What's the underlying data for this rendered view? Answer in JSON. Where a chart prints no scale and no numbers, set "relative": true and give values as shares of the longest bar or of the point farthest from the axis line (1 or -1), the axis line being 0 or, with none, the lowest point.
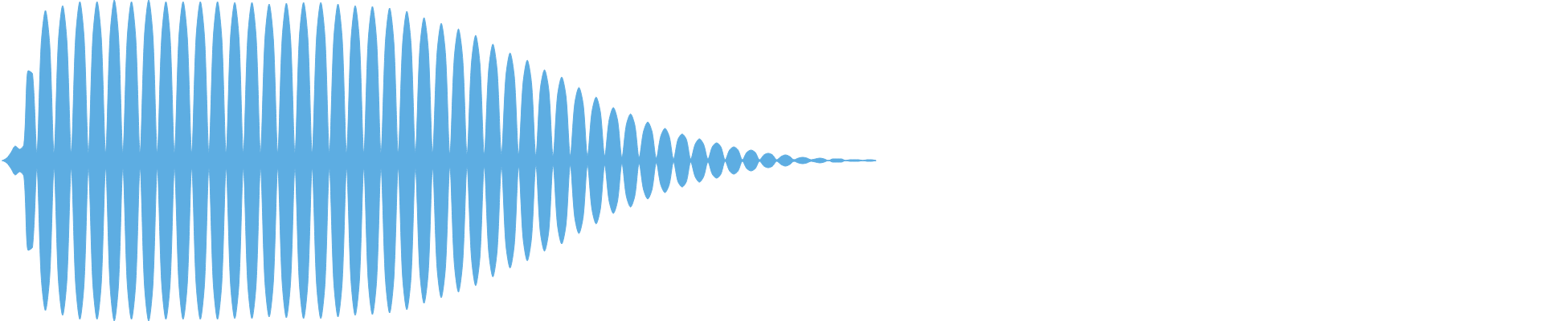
{
  "chart_data": {
    "type": "area",
    "relative": true,
    "tick_labels": false,
    "categories": [
      null,
      null,
      null,
      null,
      null,
      null,
      null,
      null,
      null,
      null,
      null,
      null,
      null,
      null,
      null,
      null,
      null,
      null,
      null,
      null,
      null,
      null,
      null,
      null,
      null,
      null,
      null,
      null,
      null,
      null,
      null,
      null,
      null,
      null,
      null,
      null,
      null,
      null,
      null,
      null,
      null,
      null,
      null,
      null,
      null,
      null,
      null,
      null,
      null,
      null,
      null,
      null,
      null,
      null,
      null,
      null,
      null,
      null,
      null,
      null,
      null,
      null,
      null,
      null,
      null,
      null,
      null,
      null,
      null,
      null,
      null,
      null,
      null,
      null,
      null,
      null,
      null,
      null,
      null,
      null,
      null,
      null,
      null,
      null,
      null,
      null,
      null,
      null,
      null,
      null,
      null,
      null,
      null,
      null,
      null,
      null,
      null,
      null,
      null,
      null,
      null,
      null,
      null,
      null,
      null,
      null,
      null,
      null,
      null,
      null,
      null,
      null,
      null,
      null,
      null,
      null,
      null,
      null,
      null,
      null,
      null,
      null,
      null,
      null,
      null,
      null,
      null,
      null,
      null,
      null,
      null,
      null,
      null,
      null,
      null,
      null,
      null,
      null,
      null,
      null,
      null,
      null,
      null,
      null,
      null,
      null,
      null,
      null,
      null,
      null,
      null,
      null,
      null,
      null,
      null,
      null,
      null,
      null,
      null,
      null,
      null,
      null,
      null,
      null,
      null,
      null,
      null,
      null,
      null,
      null,
      null,
      null,
      null,
      null,
      null,
      null,
      null,
      null,
      null,
      null,
      null,
      null,
      null,
      null,
      null,
      null,
      null,
      null,
      null,
      null,
      null,
      null,
      null,
      null,
      null,
      null,
      null,
      null,
      null,
      null,
      null,
      null,
      null,
      null
    ],
    "series": [
      {
        "color": "#5dade2",
        "values": [
          0,
          0.015,
          0.05,
          0.09,
          0.07,
          0.1,
          0.56,
          0.54,
          0.05,
          0.72,
          0.935,
          0.72,
          0.05,
          0.74,
          0.965,
          0.74,
          0.05,
          0.76,
          0.99,
          0.76,
          0.05,
          0.76,
          0.99,
          0.76,
          0.05,
          0.77,
          1,
          0.77,
          0.05,
          0.76,
          0.99,
          0.76,
          0.05,
          0.77,
          1,
          0.77,
          0.05,
          0.76,
          0.99,
          0.76,
          0.05,
          0.76,
          0.99,
          0.76,
          0.05,
          0.76,
          0.99,
          0.76,
          0.05,
          0.76,
          0.99,
          0.76,
          0.05,
          0.76,
          0.985,
          0.76,
          0.05,
          0.76,
          0.985,
          0.76,
          0.05,
          0.75,
          0.975,
          0.75,
          0.05,
          0.75,
          0.98,
          0.75,
          0.05,
          0.76,
          0.985,
          0.76,
          0.05,
          0.76,
          0.985,
          0.76,
          0.05,
          0.75,
          0.975,
          0.75,
          0.05,
          0.74,
          0.965,
          0.74,
          0.05,
          0.74,
          0.96,
          0.74,
          0.05,
          0.73,
          0.95,
          0.73,
          0.05,
          0.72,
          0.93,
          0.72,
          0.05,
          0.69,
          0.89,
          0.69,
          0.05,
          0.66,
          0.855,
          0.66,
          0.04,
          0.63,
          0.82,
          0.63,
          0.04,
          0.6,
          0.78,
          0.6,
          0.04,
          0.56,
          0.725,
          0.56,
          0.04,
          0.52,
          0.67,
          0.52,
          0.04,
          0.48,
          0.625,
          0.48,
          0.03,
          0.44,
          0.565,
          0.44,
          0.03,
          0.4,
          0.52,
          0.4,
          0.03,
          0.35,
          0.455,
          0.35,
          0.03,
          0.3,
          0.395,
          0.3,
          0.03,
          0.25,
          0.33,
          0.25,
          0.02,
          0.22,
          0.29,
          0.22,
          0.02,
          0.18,
          0.24,
          0.18,
          0.015,
          0.15,
          0.2,
          0.15,
          0.01,
          0.13,
          0.165,
          0.13,
          0.01,
          0.1,
          0.135,
          0.1,
          0.01,
          0.085,
          0.11,
          0.085,
          0.005,
          0.065,
          0.085,
          0.065,
          0.005,
          0.05,
          0.065,
          0.05,
          0.005,
          0.035,
          0.045,
          0.035,
          0.005,
          0.025,
          0.035,
          0.025,
          0.005,
          0.015,
          0.02,
          0.015,
          0.005,
          0.01,
          0.015,
          0.01,
          0,
          0.01,
          0.01,
          0.01,
          0,
          0.005,
          0.005,
          0.005,
          0,
          0.005,
          0.005,
          0
        ]
      },
      {
        "color": "#5dade2",
        "values": [
          0,
          -0.015,
          -0.05,
          -0.09,
          -0.07,
          -0.1,
          -0.56,
          -0.54,
          -0.05,
          -0.72,
          -0.935,
          -0.72,
          -0.05,
          -0.74,
          -0.965,
          -0.74,
          -0.05,
          -0.76,
          -0.99,
          -0.76,
          -0.05,
          -0.76,
          -0.99,
          -0.76,
          -0.05,
          -0.77,
          -1,
          -0.77,
          -0.05,
          -0.76,
          -0.99,
          -0.76,
          -0.05,
          -0.77,
          -1,
          -0.77,
          -0.05,
          -0.76,
          -0.99,
          -0.76,
          -0.05,
          -0.76,
          -0.99,
          -0.76,
          -0.05,
          -0.76,
          -0.99,
          -0.76,
          -0.05,
          -0.76,
          -0.99,
          -0.76,
          -0.05,
          -0.76,
          -0.985,
          -0.76,
          -0.05,
          -0.76,
          -0.985,
          -0.76,
          -0.05,
          -0.75,
          -0.975,
          -0.75,
          -0.05,
          -0.75,
          -0.98,
          -0.75,
          -0.05,
          -0.76,
          -0.985,
          -0.76,
          -0.05,
          -0.76,
          -0.985,
          -0.76,
          -0.05,
          -0.75,
          -0.975,
          -0.75,
          -0.05,
          -0.74,
          -0.965,
          -0.74,
          -0.05,
          -0.74,
          -0.96,
          -0.74,
          -0.05,
          -0.73,
          -0.95,
          -0.73,
          -0.05,
          -0.72,
          -0.93,
          -0.72,
          -0.05,
          -0.69,
          -0.89,
          -0.69,
          -0.05,
          -0.66,
          -0.855,
          -0.66,
          -0.04,
          -0.63,
          -0.82,
          -0.63,
          -0.04,
          -0.6,
          -0.78,
          -0.6,
          -0.04,
          -0.56,
          -0.725,
          -0.56,
          -0.04,
          -0.52,
          -0.67,
          -0.52,
          -0.04,
          -0.48,
          -0.625,
          -0.48,
          -0.03,
          -0.44,
          -0.565,
          -0.44,
          -0.03,
          -0.4,
          -0.52,
          -0.4,
          -0.03,
          -0.35,
          -0.455,
          -0.35,
          -0.03,
          -0.3,
          -0.395,
          -0.3,
          -0.03,
          -0.25,
          -0.33,
          -0.25,
          -0.02,
          -0.22,
          -0.29,
          -0.22,
          -0.02,
          -0.18,
          -0.24,
          -0.18,
          -0.015,
          -0.15,
          -0.2,
          -0.15,
          -0.01,
          -0.13,
          -0.165,
          -0.13,
          -0.01,
          -0.1,
          -0.135,
          -0.1,
          -0.01,
          -0.085,
          -0.11,
          -0.085,
          -0.005,
          -0.065,
          -0.085,
          -0.065,
          -0.005,
          -0.05,
          -0.065,
          -0.05,
          -0.005,
          -0.035,
          -0.045,
          -0.035,
          -0.005,
          -0.025,
          -0.035,
          -0.025,
          -0.005,
          -0.015,
          -0.02,
          -0.015,
          -0.005,
          -0.01,
          -0.015,
          -0.01,
          0,
          -0.01,
          -0.01,
          -0.01,
          0,
          -0.005,
          -0.005,
          -0.005,
          0,
          -0.005,
          -0.005,
          0
        ]
      }
    ]
  }
}
